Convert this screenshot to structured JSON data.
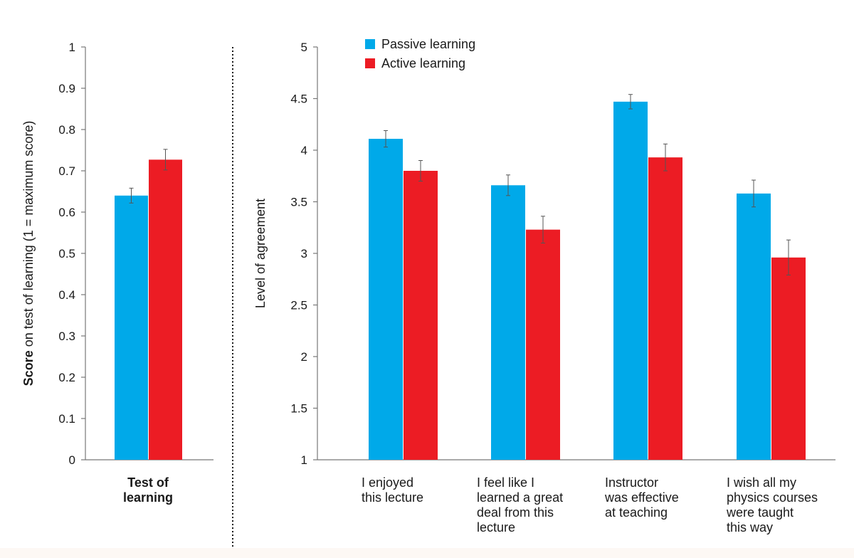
{
  "chart_data": [
    {
      "type": "bar",
      "ylabel_bold": "Score",
      "ylabel_rest": " on test of learning  (1 = maximum score)",
      "ylim": [
        0,
        1
      ],
      "yticks": [
        0,
        0.1,
        0.2,
        0.3,
        0.4,
        0.5,
        0.6,
        0.7,
        0.8,
        0.9,
        1
      ],
      "ytick_labels": [
        "0",
        "0.1",
        "0.2",
        "0.3",
        "0.4",
        "0.5",
        "0.6",
        "0.7",
        "0.8",
        "0.9",
        "1"
      ],
      "categories": [
        [
          "Test of",
          "learning"
        ]
      ],
      "category_bold": true,
      "series": [
        {
          "name": "Passive learning",
          "color": "#00a9e9",
          "values": [
            0.64
          ],
          "errors": [
            0.018
          ]
        },
        {
          "name": "Active learning",
          "color": "#ec1c24",
          "values": [
            0.727
          ],
          "errors": [
            0.025
          ]
        }
      ]
    },
    {
      "type": "bar",
      "ylabel": "Level of agreement",
      "ylim": [
        1,
        5
      ],
      "yticks": [
        1,
        1.5,
        2,
        2.5,
        3,
        3.5,
        4,
        4.5,
        5
      ],
      "ytick_labels": [
        "1",
        "1.5",
        "2",
        "2.5",
        "3",
        "3.5",
        "4",
        "4.5",
        "5"
      ],
      "categories": [
        [
          "I enjoyed",
          "this lecture"
        ],
        [
          "I feel like I",
          "learned a great",
          "deal from this",
          "lecture"
        ],
        [
          "Instructor",
          "was effective",
          "at teaching"
        ],
        [
          "I wish all my",
          "physics courses",
          "were taught",
          "this way"
        ]
      ],
      "legend": {
        "position": "top-left",
        "entries": [
          "Passive learning",
          "Active learning"
        ]
      },
      "series": [
        {
          "name": "Passive learning",
          "color": "#00a9e9",
          "values": [
            4.11,
            3.66,
            4.47,
            3.58
          ],
          "errors": [
            0.08,
            0.1,
            0.07,
            0.13
          ]
        },
        {
          "name": "Active learning",
          "color": "#ec1c24",
          "values": [
            3.8,
            3.23,
            3.93,
            2.96
          ],
          "errors": [
            0.1,
            0.13,
            0.13,
            0.17
          ]
        }
      ]
    }
  ]
}
